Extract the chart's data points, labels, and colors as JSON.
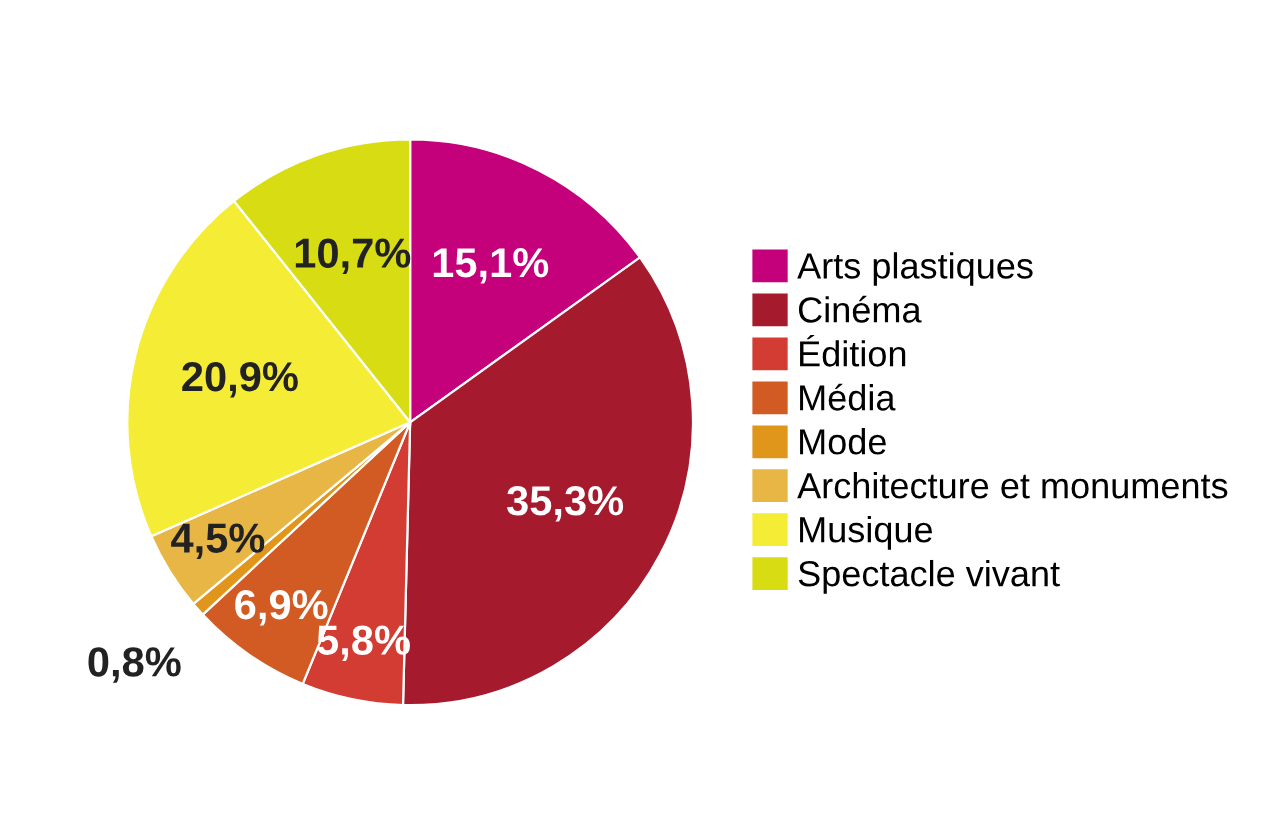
{
  "chart_data": {
    "type": "pie",
    "categories": [
      "Arts plastiques",
      "Cinéma",
      "Édition",
      "Média",
      "Mode",
      "Architecture et monuments",
      "Musique",
      "Spectacle vivant"
    ],
    "values": [
      15.1,
      35.3,
      5.8,
      6.9,
      0.8,
      4.5,
      20.9,
      10.7
    ],
    "value_labels": [
      "15,1%",
      "35,3%",
      "5,8%",
      "6,9%",
      "0,8%",
      "4,5%",
      "20,9%",
      "10,7%"
    ],
    "colors": [
      "#c4007a",
      "#a51b2d",
      "#d23c33",
      "#d25b23",
      "#e0961a",
      "#e8b644",
      "#f5ec35",
      "#d7dd12"
    ],
    "legend": "right"
  }
}
